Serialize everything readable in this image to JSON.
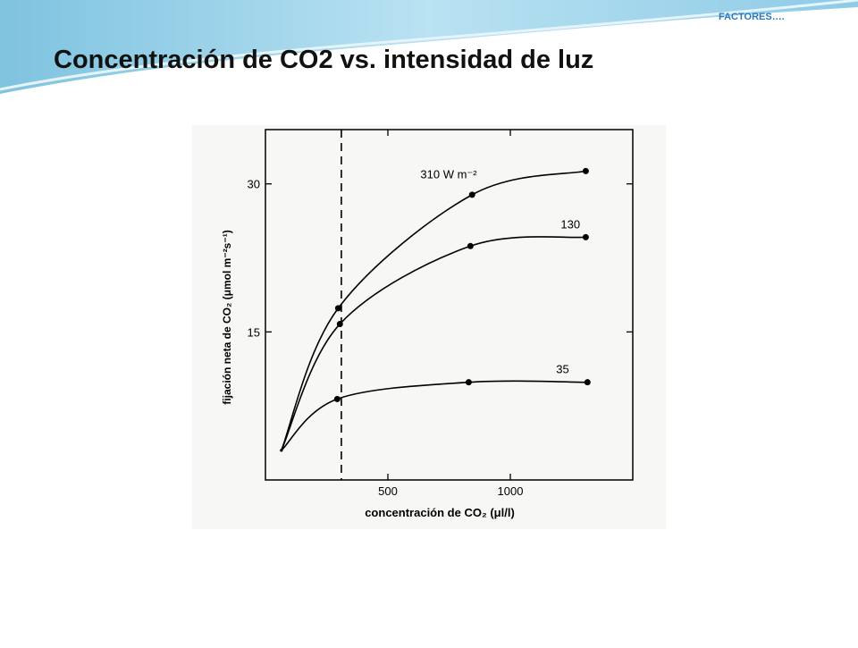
{
  "header": {
    "tag": "FACTORES….",
    "title": "Concentración de CO2 vs. intensidad de luz"
  },
  "chart_data": {
    "type": "line",
    "x_label": "concentración de CO₂ (μl/l)",
    "y_label": "fijación neta de CO₂ (μmol m⁻²s⁻¹)",
    "xlim": [
      0,
      1500
    ],
    "xticks": [
      500,
      1000
    ],
    "ylim": [
      0,
      35.5
    ],
    "yticks": [
      15,
      30
    ],
    "vline": 310,
    "series": [
      {
        "name": "310 W m⁻²",
        "color": "#000000",
        "x": [
          65,
          297,
          844,
          1308
        ],
        "values": [
          3,
          17.4,
          28.9,
          31.3
        ]
      },
      {
        "name": "130",
        "color": "#000000",
        "x": [
          65,
          304,
          837,
          1308
        ],
        "values": [
          3,
          15.8,
          23.7,
          24.6
        ]
      },
      {
        "name": "35",
        "color": "#000000",
        "x": [
          65,
          293,
          830,
          1315
        ],
        "values": [
          3,
          8.2,
          9.9,
          9.9
        ]
      }
    ]
  }
}
